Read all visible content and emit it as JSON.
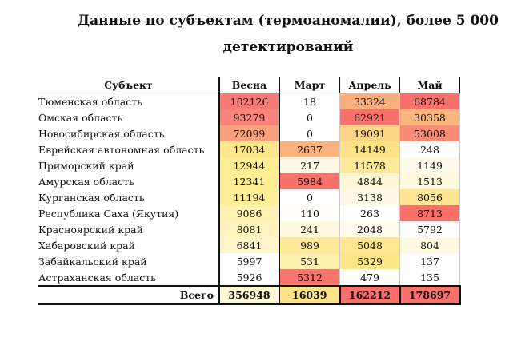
{
  "title": "Данные по субъектам (термоаномалии), более 5 000 детектирований",
  "headers": [
    "Субъект",
    "Весна",
    "Март",
    "Апрель",
    "Май"
  ],
  "rows": [
    {
      "subject": "Тюменская область",
      "values": [
        "102126",
        "18",
        "33324",
        "68784"
      ],
      "colors": [
        "#f77a76",
        "#ffffff",
        "#fbae7e",
        "#f8716a"
      ]
    },
    {
      "subject": "Омская область",
      "values": [
        "93279",
        "0",
        "62921",
        "30358"
      ],
      "colors": [
        "#f7857b",
        "#ffffff",
        "#f8716a",
        "#fbb57f"
      ]
    },
    {
      "subject": "Новосибирская область",
      "values": [
        "72099",
        "0",
        "19091",
        "53008"
      ],
      "colors": [
        "#f9a07d",
        "#ffffff",
        "#fcd585",
        "#f98a76"
      ]
    },
    {
      "subject": "Еврейская автономная область",
      "values": [
        "17034",
        "2637",
        "14149",
        "248"
      ],
      "colors": [
        "#fde68a",
        "#fbb27f",
        "#fde287",
        "#ffffff"
      ]
    },
    {
      "subject": "Приморский край",
      "values": [
        "12944",
        "217",
        "11578",
        "1149"
      ],
      "colors": [
        "#feed92",
        "#fff9e7",
        "#fee89a",
        "#fffbec"
      ]
    },
    {
      "subject": "Амурская область",
      "values": [
        "12341",
        "5984",
        "4844",
        "1513"
      ],
      "colors": [
        "#feed93",
        "#f8716a",
        "#fef6d6",
        "#fff9df"
      ]
    },
    {
      "subject": "Курганская область",
      "values": [
        "11194",
        "0",
        "3138",
        "8056"
      ],
      "colors": [
        "#feee97",
        "#ffffff",
        "#fffae6",
        "#fee594"
      ]
    },
    {
      "subject": "Республика Саха (Якутия)",
      "values": [
        "9086",
        "110",
        "263",
        "8713"
      ],
      "colors": [
        "#fff1b4",
        "#fffdf7",
        "#ffffff",
        "#f8726b"
      ]
    },
    {
      "subject": "Красноярский край",
      "values": [
        "8081",
        "241",
        "2048",
        "5792"
      ],
      "colors": [
        "#fff3bd",
        "#fff8e1",
        "#fffbed",
        "#ffffff"
      ]
    },
    {
      "subject": "Хабаровский край",
      "values": [
        "6841",
        "989",
        "5048",
        "804"
      ],
      "colors": [
        "#fff5cb",
        "#fee99b",
        "#fee792",
        "#fff9e2"
      ]
    },
    {
      "subject": "Забайкальский край",
      "values": [
        "5997",
        "531",
        "5329",
        "137"
      ],
      "colors": [
        "#ffffff",
        "#fff0b0",
        "#fee588",
        "#ffffff"
      ]
    },
    {
      "subject": "Астраханская область",
      "values": [
        "5926",
        "5312",
        "479",
        "135"
      ],
      "colors": [
        "#ffffff",
        "#f8766d",
        "#ffffff",
        "#ffffff"
      ]
    }
  ],
  "total": {
    "label": "Всего",
    "values": [
      "356948",
      "16039",
      "162212",
      "178697"
    ],
    "colors": [
      "#fff7d6",
      "#fee287",
      "#f8716a",
      "#f8716a"
    ]
  }
}
